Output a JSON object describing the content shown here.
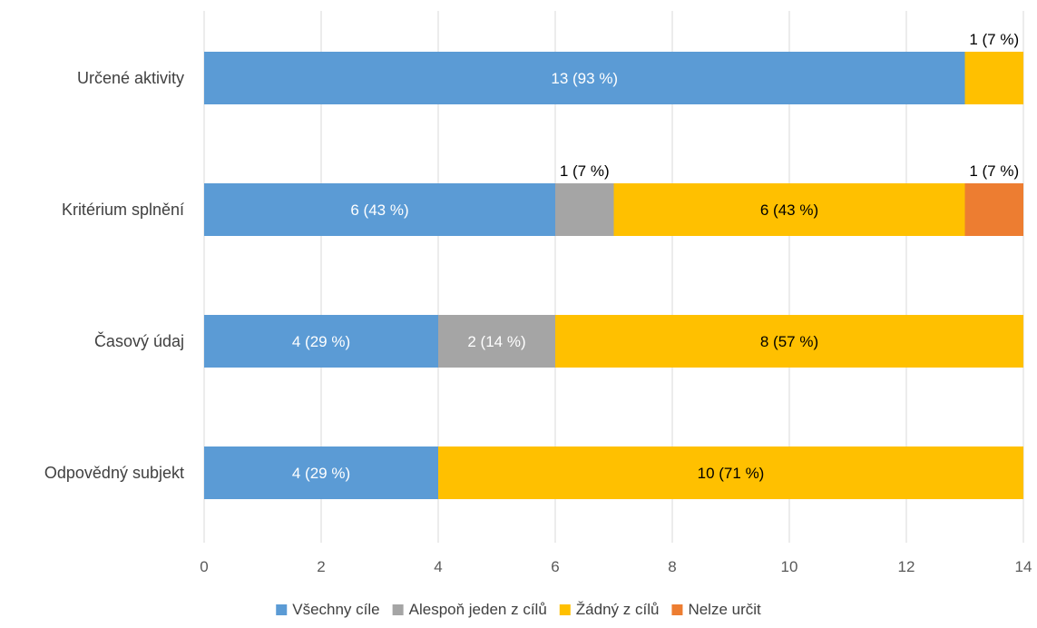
{
  "chart_data": {
    "type": "bar",
    "orientation": "horizontal",
    "stacked": true,
    "categories": [
      "Určené aktivity",
      "Kritérium splnění",
      "Časový údaj",
      "Odpovědný subjekt"
    ],
    "series": [
      {
        "name": "Všechny cíle",
        "color": "#5B9BD5",
        "values": [
          13,
          6,
          4,
          4
        ],
        "labels": [
          "13 (93 %)",
          "6 (43 %)",
          "4 (29 %)",
          "4 (29 %)"
        ],
        "label_color": "#FFFFFF"
      },
      {
        "name": "Alespoň jeden z cílů",
        "color": "#A5A5A5",
        "values": [
          0,
          1,
          2,
          0
        ],
        "labels": [
          "",
          "1 (7 %)",
          "2 (14 %)",
          ""
        ],
        "label_color": "#FFFFFF"
      },
      {
        "name": "Žádný z cílů",
        "color": "#FFC000",
        "values": [
          1,
          6,
          8,
          10
        ],
        "labels": [
          "1 (7 %)",
          "6 (43 %)",
          "8 (57 %)",
          "10 (71 %)"
        ],
        "label_color": "#000000"
      },
      {
        "name": "Nelze určit",
        "color": "#ED7D31",
        "values": [
          0,
          1,
          0,
          0
        ],
        "labels": [
          "",
          "1 (7 %)",
          "",
          ""
        ],
        "label_color": "#000000"
      }
    ],
    "xlim": [
      0,
      14
    ],
    "xticks": [
      0,
      2,
      4,
      6,
      8,
      10,
      12,
      14
    ],
    "grid": true,
    "legend_position": "bottom"
  }
}
